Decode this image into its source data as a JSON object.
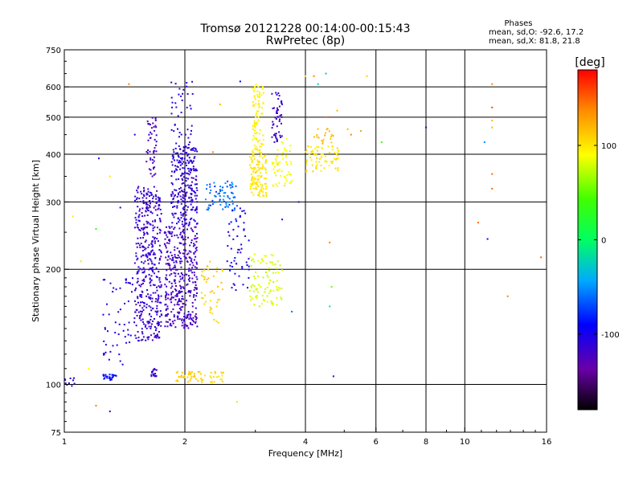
{
  "chart_data": {
    "type": "scatter",
    "title": "Tromsø 20121228 00:14:00-00:15:43",
    "subtitle": "RwPretec (8p)",
    "xlabel": "Frequency [MHz]",
    "ylabel": "Stationary phase Virtual Height [km]",
    "x_scale": "log",
    "y_scale": "log",
    "xlim": [
      1,
      16
    ],
    "ylim": [
      75,
      750
    ],
    "x_ticks": [
      1,
      2,
      4,
      6,
      8,
      10,
      16
    ],
    "x_grid": [
      2,
      4,
      6,
      8,
      10
    ],
    "y_ticks": [
      75,
      100,
      200,
      300,
      400,
      500,
      600,
      750
    ],
    "y_grid": [
      100,
      200,
      300,
      400,
      500,
      600
    ],
    "grid": true,
    "colorbar": {
      "label": "[deg]",
      "range": [
        -180,
        180
      ],
      "ticks": [
        100,
        0,
        -100
      ]
    },
    "phase_stats": {
      "heading": "Phases",
      "line_o": "mean, sd,O: -92.6, 17.2",
      "line_x": "mean, sd,X:  81.8, 21.8"
    },
    "clusters": [
      {
        "x": [
          1.5,
          1.75
        ],
        "y": [
          130,
          330
        ],
        "phase": -115,
        "spread": 20,
        "n": 420
      },
      {
        "x": [
          1.78,
          2.15
        ],
        "y": [
          140,
          260
        ],
        "phase": -120,
        "spread": 20,
        "n": 380
      },
      {
        "x": [
          1.85,
          2.15
        ],
        "y": [
          260,
          420
        ],
        "phase": -110,
        "spread": 20,
        "n": 260
      },
      {
        "x": [
          1.25,
          1.5
        ],
        "y": [
          112,
          190
        ],
        "phase": -105,
        "spread": 15,
        "n": 55
      },
      {
        "x": [
          1.6,
          1.7
        ],
        "y": [
          350,
          500
        ],
        "phase": -120,
        "spread": 15,
        "n": 50
      },
      {
        "x": [
          1.85,
          2.1
        ],
        "y": [
          420,
          620
        ],
        "phase": -110,
        "spread": 15,
        "n": 40
      },
      {
        "x": [
          1.0,
          1.06
        ],
        "y": [
          99,
          104
        ],
        "phase": -110,
        "spread": 10,
        "n": 10
      },
      {
        "x": [
          1.25,
          1.35
        ],
        "y": [
          102,
          107
        ],
        "phase": -90,
        "spread": 15,
        "n": 25
      },
      {
        "x": [
          1.65,
          1.7
        ],
        "y": [
          105,
          110
        ],
        "phase": -115,
        "spread": 10,
        "n": 20
      },
      {
        "x": [
          1.9,
          2.25
        ],
        "y": [
          101,
          108
        ],
        "phase": 110,
        "spread": 12,
        "n": 40
      },
      {
        "x": [
          2.3,
          2.5
        ],
        "y": [
          101,
          108
        ],
        "phase": 105,
        "spread": 12,
        "n": 20
      },
      {
        "x": [
          2.25,
          2.7
        ],
        "y": [
          285,
          340
        ],
        "phase": -60,
        "spread": 30,
        "n": 70
      },
      {
        "x": [
          2.2,
          2.5
        ],
        "y": [
          145,
          210
        ],
        "phase": 110,
        "spread": 15,
        "n": 45
      },
      {
        "x": [
          2.55,
          2.9
        ],
        "y": [
          175,
          290
        ],
        "phase": -100,
        "spread": 25,
        "n": 55
      },
      {
        "x": [
          2.9,
          3.2
        ],
        "y": [
          310,
          400
        ],
        "phase": 100,
        "spread": 12,
        "n": 120
      },
      {
        "x": [
          2.95,
          3.15
        ],
        "y": [
          400,
          610
        ],
        "phase": 95,
        "spread": 12,
        "n": 90
      },
      {
        "x": [
          2.9,
          3.5
        ],
        "y": [
          160,
          220
        ],
        "phase": 80,
        "spread": 15,
        "n": 90
      },
      {
        "x": [
          3.3,
          3.7
        ],
        "y": [
          330,
          440
        ],
        "phase": 90,
        "spread": 15,
        "n": 60
      },
      {
        "x": [
          3.3,
          3.5
        ],
        "y": [
          430,
          580
        ],
        "phase": -115,
        "spread": 15,
        "n": 50
      },
      {
        "x": [
          4.0,
          4.9
        ],
        "y": [
          360,
          420
        ],
        "phase": 100,
        "spread": 15,
        "n": 70
      },
      {
        "x": [
          4.2,
          4.7
        ],
        "y": [
          420,
          470
        ],
        "phase": 115,
        "spread": 15,
        "n": 20
      }
    ],
    "isolated": [
      {
        "x": 1.05,
        "y": 275,
        "phase": 100
      },
      {
        "x": 1.2,
        "y": 255,
        "phase": 30
      },
      {
        "x": 1.38,
        "y": 290,
        "phase": -100
      },
      {
        "x": 1.3,
        "y": 350,
        "phase": 100
      },
      {
        "x": 1.1,
        "y": 210,
        "phase": 100
      },
      {
        "x": 1.22,
        "y": 390,
        "phase": -110
      },
      {
        "x": 1.15,
        "y": 110,
        "phase": 90
      },
      {
        "x": 1.2,
        "y": 88,
        "phase": 140
      },
      {
        "x": 1.3,
        "y": 85,
        "phase": -110
      },
      {
        "x": 1.45,
        "y": 610,
        "phase": 140
      },
      {
        "x": 1.5,
        "y": 450,
        "phase": -100
      },
      {
        "x": 2.02,
        "y": 615,
        "phase": -110
      },
      {
        "x": 2.35,
        "y": 405,
        "phase": 140
      },
      {
        "x": 2.45,
        "y": 540,
        "phase": 120
      },
      {
        "x": 2.7,
        "y": 90,
        "phase": 70
      },
      {
        "x": 2.75,
        "y": 620,
        "phase": -90
      },
      {
        "x": 3.5,
        "y": 270,
        "phase": -110
      },
      {
        "x": 3.85,
        "y": 300,
        "phase": -120
      },
      {
        "x": 3.7,
        "y": 155,
        "phase": -60
      },
      {
        "x": 4.0,
        "y": 640,
        "phase": 100
      },
      {
        "x": 4.3,
        "y": 610,
        "phase": -30
      },
      {
        "x": 4.5,
        "y": 650,
        "phase": -30
      },
      {
        "x": 4.2,
        "y": 640,
        "phase": 140
      },
      {
        "x": 4.5,
        "y": 500,
        "phase": 150
      },
      {
        "x": 4.6,
        "y": 235,
        "phase": 140
      },
      {
        "x": 4.6,
        "y": 160,
        "phase": -10
      },
      {
        "x": 4.65,
        "y": 180,
        "phase": 50
      },
      {
        "x": 4.7,
        "y": 105,
        "phase": -110
      },
      {
        "x": 4.8,
        "y": 520,
        "phase": 120
      },
      {
        "x": 5.1,
        "y": 465,
        "phase": 120
      },
      {
        "x": 5.2,
        "y": 450,
        "phase": 140
      },
      {
        "x": 5.5,
        "y": 460,
        "phase": 130
      },
      {
        "x": 5.7,
        "y": 640,
        "phase": 110
      },
      {
        "x": 6.2,
        "y": 430,
        "phase": 40
      },
      {
        "x": 8.0,
        "y": 470,
        "phase": -110
      },
      {
        "x": 10.8,
        "y": 265,
        "phase": 150
      },
      {
        "x": 11.2,
        "y": 430,
        "phase": -50
      },
      {
        "x": 11.4,
        "y": 240,
        "phase": -90
      },
      {
        "x": 11.7,
        "y": 610,
        "phase": 140
      },
      {
        "x": 11.7,
        "y": 530,
        "phase": 160
      },
      {
        "x": 11.7,
        "y": 490,
        "phase": 120
      },
      {
        "x": 11.7,
        "y": 470,
        "phase": 120
      },
      {
        "x": 11.7,
        "y": 355,
        "phase": 150
      },
      {
        "x": 11.7,
        "y": 325,
        "phase": 150
      },
      {
        "x": 12.8,
        "y": 170,
        "phase": 140
      },
      {
        "x": 15.5,
        "y": 215,
        "phase": 150
      }
    ]
  }
}
